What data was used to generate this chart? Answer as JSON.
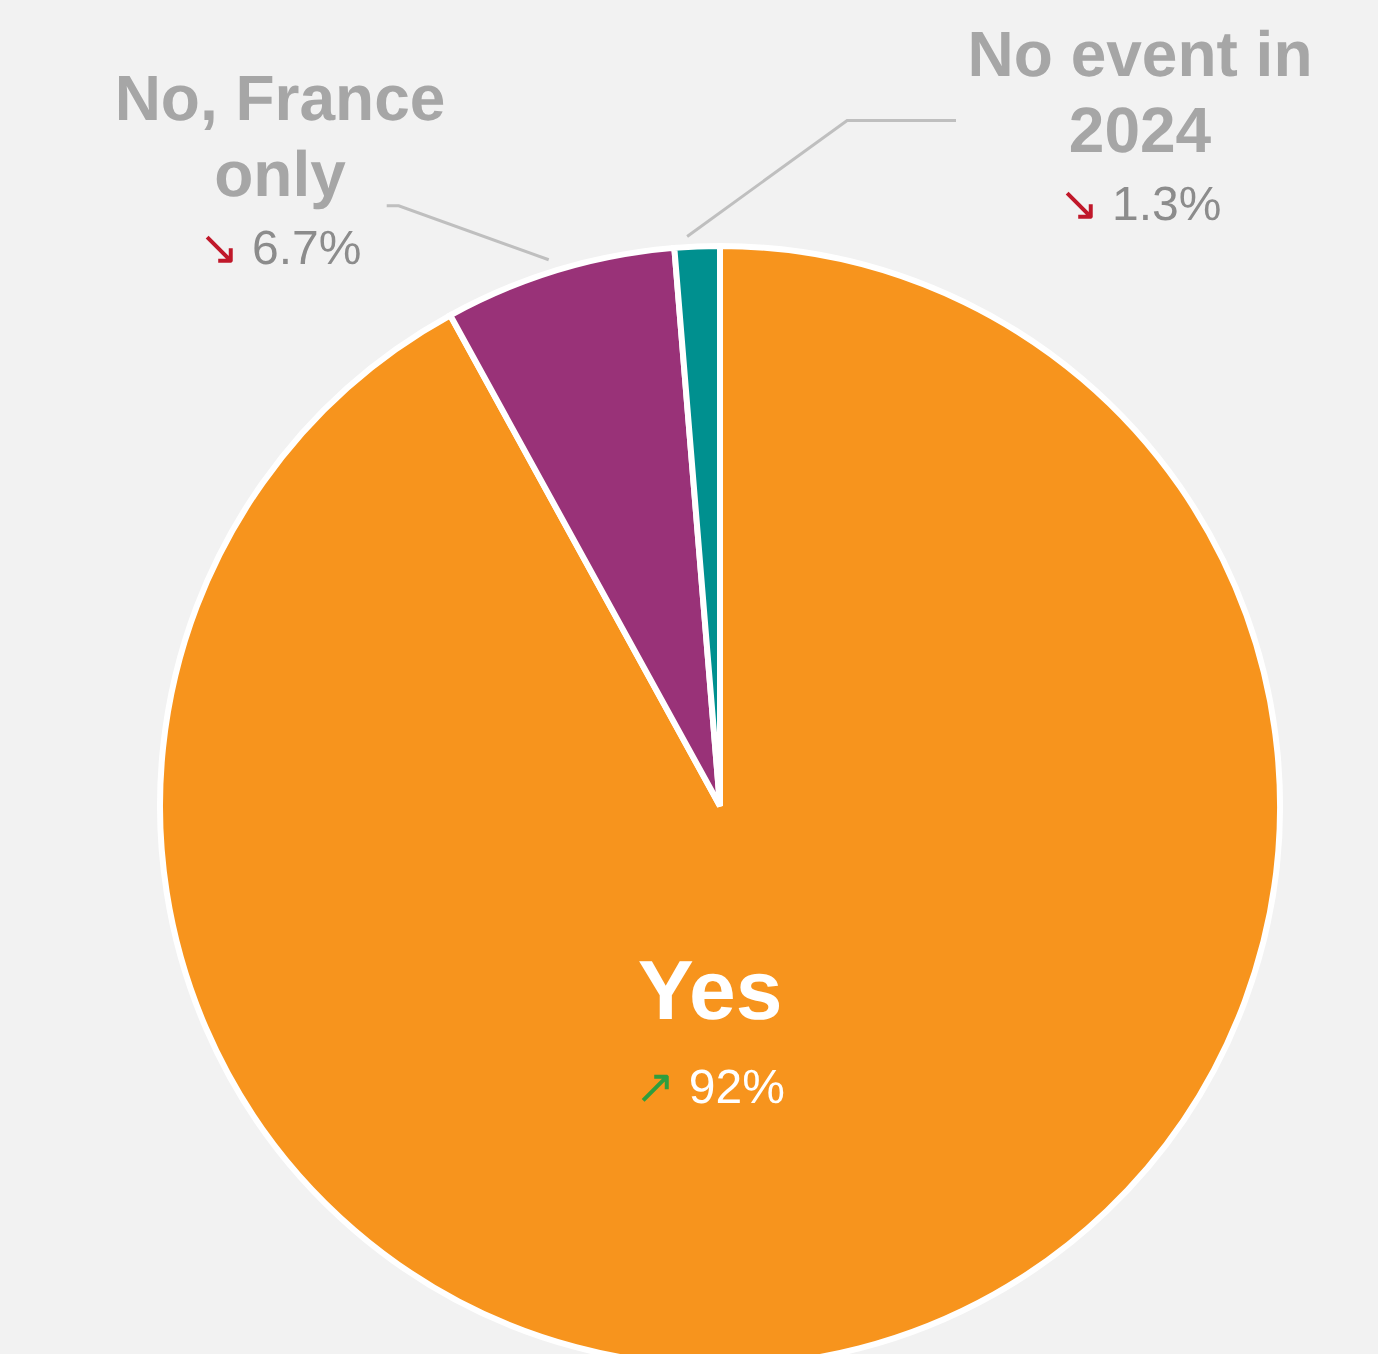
{
  "chart_data": {
    "type": "pie",
    "categories": [
      "Yes",
      "No, France only",
      "No event in 2024"
    ],
    "values": [
      92,
      6.7,
      1.3
    ],
    "colors": [
      "#f7941d",
      "#993278",
      "#00908f"
    ],
    "value_labels": [
      "↗ 92%",
      "↘ 6.7%",
      "↘ 1.3%"
    ],
    "legend": false
  }
}
